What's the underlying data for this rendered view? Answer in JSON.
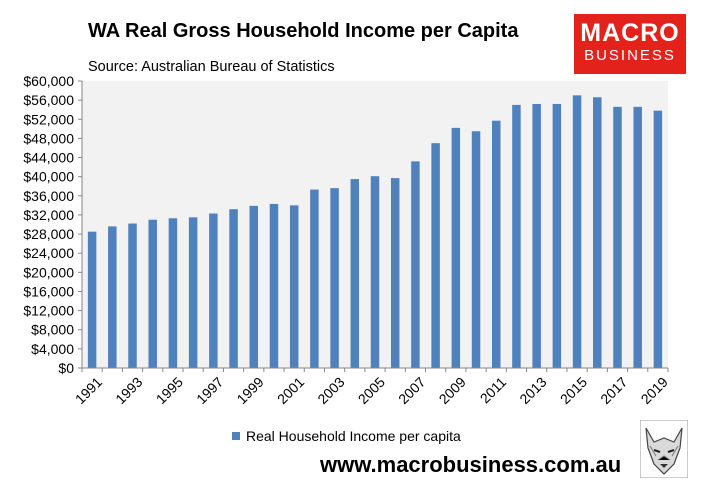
{
  "header": {
    "title": "WA Real Gross Household Income per Capita",
    "subtitle": "Source: Australian Bureau of Statistics"
  },
  "logo": {
    "line1": "MACRO",
    "line2": "BUSINESS",
    "color": "#e2221b"
  },
  "footer": {
    "url": "www.macrobusiness.com.au"
  },
  "chart_data": {
    "type": "bar",
    "title": "WA Real Gross Household Income per Capita",
    "xlabel": "",
    "ylabel": "",
    "ylim": [
      0,
      60000
    ],
    "ytick_step": 4000,
    "yticks": [
      "$0",
      "$4,000",
      "$8,000",
      "$12,000",
      "$16,000",
      "$20,000",
      "$24,000",
      "$28,000",
      "$32,000",
      "$36,000",
      "$40,000",
      "$44,000",
      "$48,000",
      "$52,000",
      "$56,000",
      "$60,000"
    ],
    "categories": [
      "1991",
      "1992",
      "1993",
      "1994",
      "1995",
      "1996",
      "1997",
      "1998",
      "1999",
      "2000",
      "2001",
      "2002",
      "2003",
      "2004",
      "2005",
      "2006",
      "2007",
      "2008",
      "2009",
      "2010",
      "2011",
      "2012",
      "2013",
      "2014",
      "2015",
      "2016",
      "2017",
      "2018",
      "2019"
    ],
    "xtick_labels": [
      "1991",
      "1993",
      "1995",
      "1997",
      "1999",
      "2001",
      "2003",
      "2005",
      "2007",
      "2009",
      "2011",
      "2013",
      "2015",
      "2017",
      "2019"
    ],
    "series": [
      {
        "name": "Real Household Income per capita",
        "color": "#4f81bd",
        "values": [
          28500,
          29600,
          30200,
          31000,
          31300,
          31500,
          32300,
          33200,
          33900,
          34300,
          34000,
          37300,
          37600,
          39500,
          40100,
          39700,
          43200,
          47000,
          50200,
          49500,
          51700,
          55000,
          55200,
          55200,
          57000,
          56600,
          54600,
          54600,
          53800
        ]
      }
    ],
    "grid": false,
    "plot_background": "#f2f2f2",
    "legend_position": "bottom"
  }
}
